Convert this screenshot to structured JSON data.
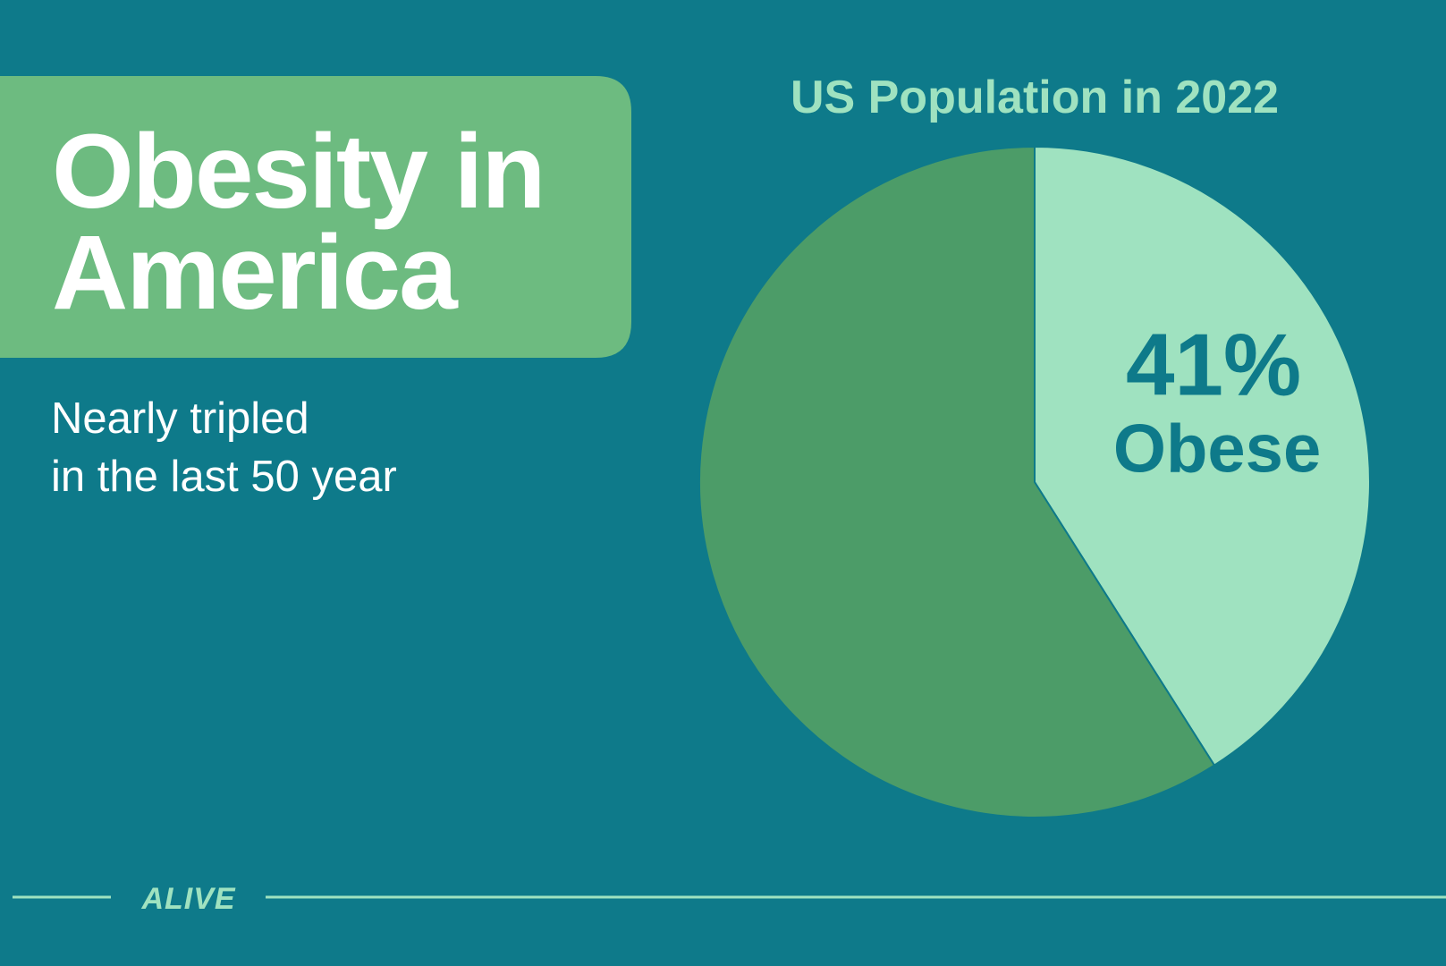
{
  "header": {
    "title_lines": [
      "Obesity in",
      "America"
    ],
    "subtitle_lines": [
      "Nearly tripled",
      "in the last 50 year"
    ]
  },
  "chart_data": {
    "type": "pie",
    "title": "US Population in 2022",
    "categories": [
      "Obese",
      null
    ],
    "values": [
      41,
      59
    ],
    "value_labels": [
      "41%",
      null
    ],
    "colors": [
      "#9fe2c0",
      "#4c9c68"
    ]
  },
  "footer": {
    "brand": "ALIVE"
  }
}
